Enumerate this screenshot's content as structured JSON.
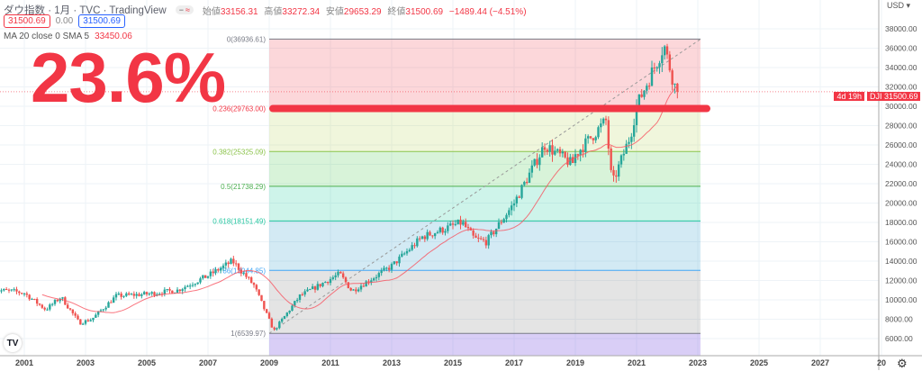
{
  "header": {
    "symbol": "ダウ指数",
    "interval": "1月",
    "source": "TVC",
    "platform": "TradingView",
    "open_label": "始値",
    "open": "33156.31",
    "high_label": "高値",
    "high": "33272.34",
    "low_label": "安値",
    "low": "29653.29",
    "close_label": "終値",
    "close": "31500.69",
    "change": "−1489.44 (−4.51%)",
    "bid": "31500.69",
    "spread": "0.00",
    "ask": "31500.69"
  },
  "indicator": {
    "label": "MA 20 close 0 SMA 5",
    "value": "33450.06"
  },
  "annotation": {
    "text": "23.6%"
  },
  "price_axis": {
    "currency": "USD",
    "ticks": [
      "38000.00",
      "36000.00",
      "34000.00",
      "32000.00",
      "30000.00",
      "28000.00",
      "26000.00",
      "24000.00",
      "22000.00",
      "20000.00",
      "18000.00",
      "16000.00",
      "14000.00",
      "12000.00",
      "10000.00",
      "8000.00",
      "6000.00"
    ],
    "symbol_tag": "DJI",
    "last_price": "31500.69",
    "countdown": "4d 19h"
  },
  "time_axis": {
    "ticks": [
      "2001",
      "2003",
      "2005",
      "2007",
      "2009",
      "2011",
      "2013",
      "2015",
      "2017",
      "2019",
      "2021",
      "2023",
      "2025",
      "2027",
      "20"
    ]
  },
  "colors": {
    "up": "#26a69a",
    "down": "#ef5350",
    "ma": "#f7525f",
    "highlight": "#f23645"
  },
  "chart_data": {
    "type": "candlestick",
    "title": "ダウ指数 1月",
    "ylim": [
      5000,
      39000
    ],
    "xlim": [
      2000,
      2030
    ],
    "last_close": 31500.69,
    "sma_period": 20,
    "keypoints": [
      [
        2000.0,
        11000
      ],
      [
        2000.6,
        10900
      ],
      [
        2001.0,
        10700
      ],
      [
        2001.7,
        9000
      ],
      [
        2002.2,
        10300
      ],
      [
        2002.8,
        7600
      ],
      [
        2003.2,
        8000
      ],
      [
        2004.0,
        10400
      ],
      [
        2005.0,
        10600
      ],
      [
        2006.0,
        11000
      ],
      [
        2007.0,
        12500
      ],
      [
        2007.8,
        14000
      ],
      [
        2008.5,
        11500
      ],
      [
        2009.15,
        6800
      ],
      [
        2010.0,
        10400
      ],
      [
        2011.3,
        12700
      ],
      [
        2011.7,
        10900
      ],
      [
        2013.0,
        13500
      ],
      [
        2014.0,
        16500
      ],
      [
        2015.3,
        18000
      ],
      [
        2015.7,
        16300
      ],
      [
        2016.1,
        16000
      ],
      [
        2017.0,
        20000
      ],
      [
        2018.0,
        26000
      ],
      [
        2018.9,
        24000
      ],
      [
        2019.0,
        25000
      ],
      [
        2020.0,
        28500
      ],
      [
        2020.2,
        21900
      ],
      [
        2020.8,
        27000
      ],
      [
        2021.0,
        30000
      ],
      [
        2021.9,
        36300
      ],
      [
        2022.0,
        35000
      ],
      [
        2022.3,
        31500
      ]
    ],
    "fibonacci": {
      "from_year": 2009.0,
      "to_year": 2023.0,
      "levels": [
        {
          "ratio": 0,
          "price": 36936.61,
          "label": "0(36936.61)",
          "color": "#787b86",
          "fill": "rgba(242,54,69,0.2)"
        },
        {
          "ratio": 0.236,
          "price": 29763.0,
          "label": "0.236(29763.00)",
          "color": "#f23645",
          "fill": "rgba(178,210,80,0.2)"
        },
        {
          "ratio": 0.382,
          "price": 25325.09,
          "label": "0.382(25325.09)",
          "color": "#8bc34a",
          "fill": "rgba(76,200,80,0.22)"
        },
        {
          "ratio": 0.5,
          "price": 21738.29,
          "label": "0.5(21738.29)",
          "color": "#4caf50",
          "fill": "rgba(8,200,150,0.2)"
        },
        {
          "ratio": 0.618,
          "price": 18151.49,
          "label": "0.618(18151.49)",
          "color": "#26c6a0",
          "fill": "rgba(33,150,200,0.2)"
        },
        {
          "ratio": 0.786,
          "price": 13044.85,
          "label": "0.786(13044.85)",
          "color": "#42a5f5",
          "fill": "rgba(120,120,120,0.2)"
        },
        {
          "ratio": 1,
          "price": 6539.97,
          "label": "1(6539.97)",
          "color": "#787b86",
          "fill": "rgba(103,58,220,0.25)"
        }
      ]
    }
  }
}
